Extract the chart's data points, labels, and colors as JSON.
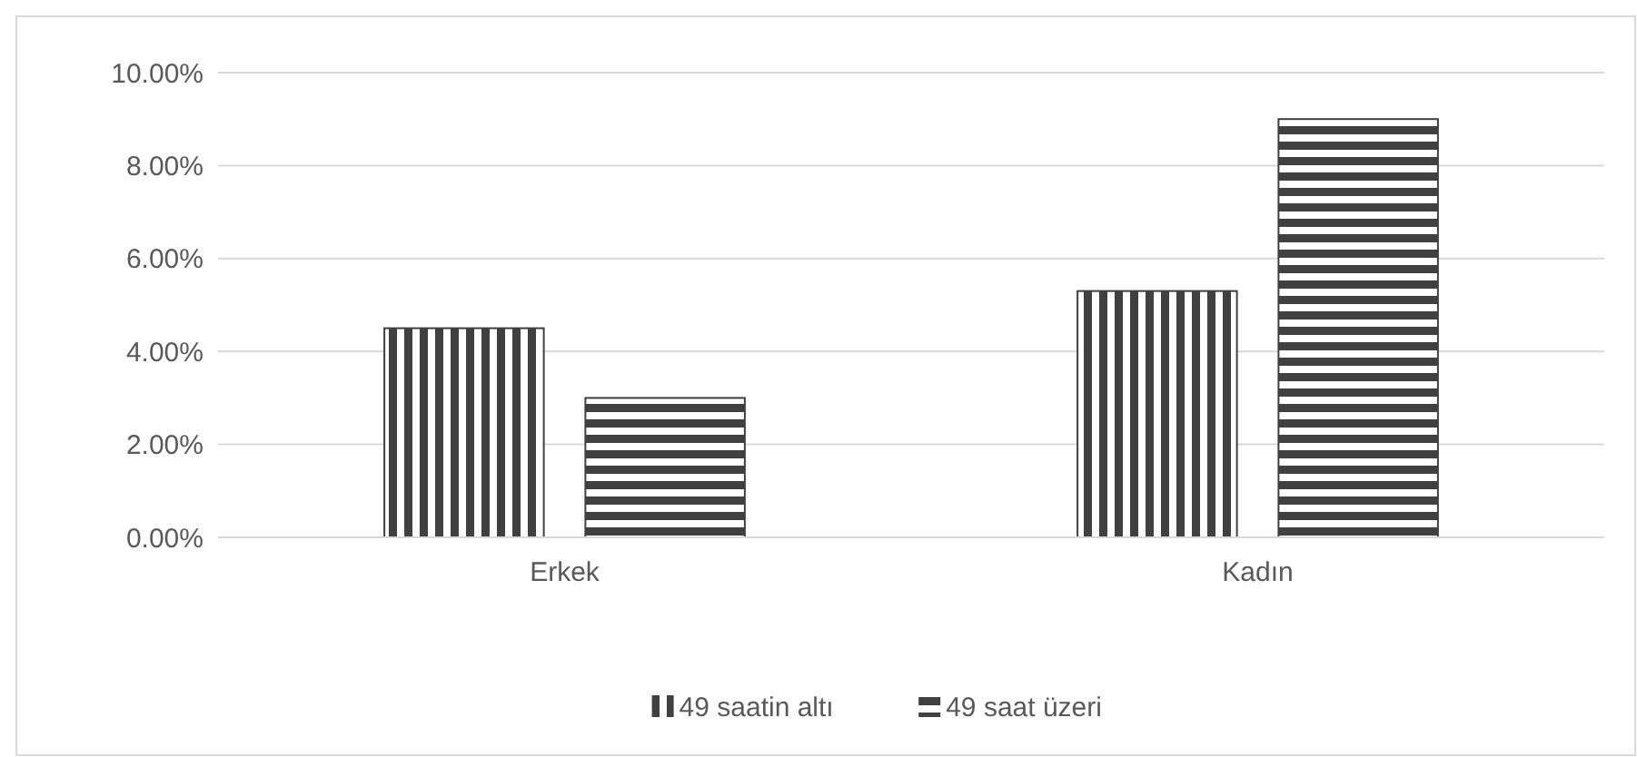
{
  "chart_data": {
    "type": "bar",
    "categories": [
      "Erkek",
      "Kadın"
    ],
    "series": [
      {
        "name": "49 saatin altı",
        "color": "#404040",
        "values": [
          4.5,
          5.3
        ]
      },
      {
        "name": "49 saat üzeri",
        "color": "#404040",
        "values": [
          3.0,
          9.0
        ]
      }
    ],
    "ylim": [
      0,
      10
    ],
    "yticks": [
      {
        "value": 0,
        "label": "0.00%"
      },
      {
        "value": 2,
        "label": "2.00%"
      },
      {
        "value": 4,
        "label": "4.00%"
      },
      {
        "value": 6,
        "label": "6.00%"
      },
      {
        "value": 8,
        "label": "8.00%"
      },
      {
        "value": 10,
        "label": "10.00%"
      }
    ],
    "grid": "y",
    "legend": "bottom"
  }
}
